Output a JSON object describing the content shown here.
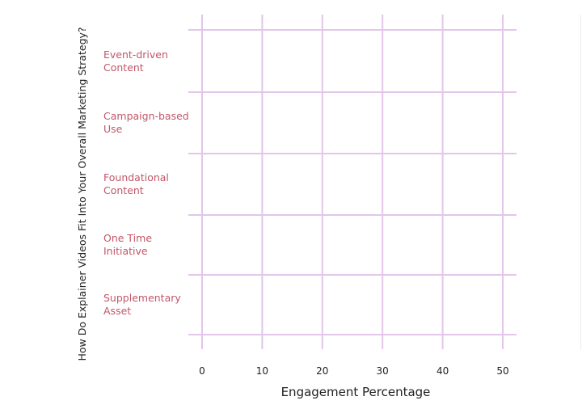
{
  "chart_data": {
    "type": "bar",
    "orientation": "horizontal",
    "title": "",
    "xlabel": "Engagement Percentage",
    "ylabel": "How Do Explainer Videos Fit Into Your Overall Marketing Strategy?",
    "categories": [
      "Event-driven Content",
      "Campaign-based Use",
      "Foundational Content",
      "One Time Initiative",
      "Supplementary Asset"
    ],
    "category_lines": [
      [
        "Event-driven",
        "Content"
      ],
      [
        "Campaign-based",
        "Use"
      ],
      [
        "Foundational",
        "Content"
      ],
      [
        "One Time",
        "Initiative"
      ],
      [
        "Supplementary",
        "Asset"
      ]
    ],
    "xticks": [
      "0",
      "10",
      "20",
      "30",
      "40",
      "50"
    ],
    "xlim": [
      0,
      50
    ],
    "grid": true,
    "colors": {
      "grid": "#e3c6ea",
      "category_text": "#c0576a",
      "text": "#222222"
    }
  }
}
